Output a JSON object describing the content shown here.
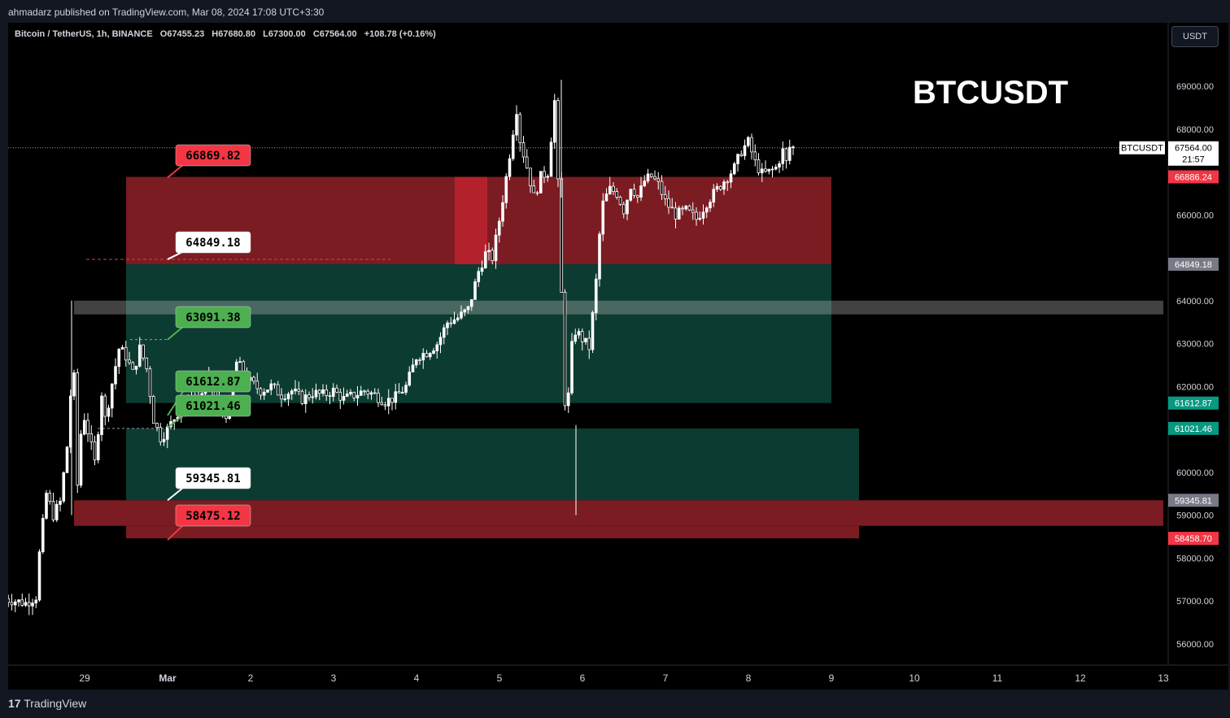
{
  "header": {
    "published": "ahmadarz published on TradingView.com, Mar 08, 2024 17:08 UTC+3:30"
  },
  "legend": {
    "symbol": "Bitcoin / TetherUS, 1h, BINANCE",
    "open": "O67455.23",
    "high": "H67680.80",
    "low": "L67300.00",
    "close": "C67564.00",
    "change": "+108.78 (+0.16%)"
  },
  "currency_button": "USDT",
  "title_text": "BTCUSDT",
  "footer": {
    "logo_text": "TradingView"
  },
  "colors": {
    "background": "#000000",
    "supply_zone": "#7a1c22",
    "demand_zone": "#0c3b31",
    "red_label": "#f23645",
    "green_label": "#4caf50",
    "teal_badge": "#089981"
  },
  "chart_data": {
    "type": "candlestick",
    "title": "BTCUSDT",
    "symbol": "Bitcoin / TetherUS",
    "interval": "1h",
    "exchange": "BINANCE",
    "ylim": [
      55200,
      70500
    ],
    "x_ticks": [
      "29",
      "Mar",
      "2",
      "3",
      "4",
      "5",
      "6",
      "7",
      "8",
      "9",
      "10",
      "11",
      "12",
      "13"
    ],
    "y_ticks": [
      "69000.00",
      "68000.00",
      "66000.00",
      "64000.00",
      "63000.00",
      "62000.00",
      "60000.00",
      "59000.00",
      "58000.00",
      "57000.00",
      "56000.00"
    ],
    "current_price": {
      "symbol": "BTCUSDT",
      "value": "67564.00",
      "countdown": "21:57",
      "y": 67564.0
    },
    "price_badges": [
      {
        "text": "66886.24",
        "y": 66886.24,
        "color": "#f23645"
      },
      {
        "text": "64849.18",
        "y": 64849.18,
        "color": "#787b86"
      },
      {
        "text": "61612.87",
        "y": 61612.87,
        "color": "#089981"
      },
      {
        "text": "61021.46",
        "y": 61021.46,
        "color": "#089981"
      },
      {
        "text": "59345.81",
        "y": 59345.81,
        "color": "#787b86"
      },
      {
        "text": "58458.70",
        "y": 58458.7,
        "color": "#f23645"
      }
    ],
    "level_labels": [
      {
        "text": "66869.82",
        "y": 66869.82,
        "style": "red"
      },
      {
        "text": "64849.18",
        "y": 64849.18,
        "style": "white"
      },
      {
        "text": "63091.38",
        "y": 63091.38,
        "style": "green"
      },
      {
        "text": "61612.87",
        "y": 61612.87,
        "style": "green"
      },
      {
        "text": "61021.46",
        "y": 61021.46,
        "style": "green"
      },
      {
        "text": "59345.81",
        "y": 59345.81,
        "style": "white"
      },
      {
        "text": "58475.12",
        "y": 58475.12,
        "style": "red"
      }
    ],
    "zones": [
      {
        "kind": "supply",
        "y_top": 66886.24,
        "y_bottom": 64849.18,
        "x_from": "Feb 29 12:00",
        "x_to": "Mar 8 24:00"
      },
      {
        "kind": "demand",
        "y_top": 64849.18,
        "y_bottom": 61612.87,
        "x_from": "Feb 29 12:00",
        "x_to": "Mar 8 24:00"
      },
      {
        "kind": "resistance_band",
        "y_top": 64000,
        "y_bottom": 63680,
        "x_from": "Feb 28 20:00",
        "x_to": "Mar 13"
      },
      {
        "kind": "demand",
        "y_top": 61021.46,
        "y_bottom": 59345.81,
        "x_from": "Feb 29 12:00",
        "x_to": "Mar 9 08:00"
      },
      {
        "kind": "support_band",
        "y_top": 59345.81,
        "y_bottom": 58750,
        "x_from": "Feb 28 20:00",
        "x_to": "Mar 13"
      },
      {
        "kind": "supply",
        "y_top": 58750,
        "y_bottom": 58458.7,
        "x_from": "Feb 29 12:00",
        "x_to": "Mar 9 08:00"
      }
    ],
    "price_path": [
      {
        "t": "Feb 28 00:00",
        "price": 57050
      },
      {
        "t": "Feb 28 06:00",
        "price": 56950
      },
      {
        "t": "Feb 28 09:00",
        "price": 57100
      },
      {
        "t": "Feb 28 10:00",
        "price": 58100
      },
      {
        "t": "Feb 28 12:00",
        "price": 59500
      },
      {
        "t": "Feb 28 14:00",
        "price": 59000
      },
      {
        "t": "Feb 28 16:00",
        "price": 59300
      },
      {
        "t": "Feb 28 18:00",
        "price": 60600
      },
      {
        "t": "Feb 28 19:00",
        "price": 61800
      },
      {
        "t": "Feb 28 20:00",
        "price": 62200
      },
      {
        "t": "Feb 28 21:00",
        "price": 59700
      },
      {
        "t": "Feb 28 22:00",
        "price": 60900
      },
      {
        "t": "Feb 29 00:00",
        "price": 61300
      },
      {
        "t": "Feb 29 03:00",
        "price": 60200
      },
      {
        "t": "Feb 29 05:00",
        "price": 61900
      },
      {
        "t": "Feb 29 06:00",
        "price": 61200
      },
      {
        "t": "Feb 29 08:00",
        "price": 62100
      },
      {
        "t": "Feb 29 10:00",
        "price": 62900
      },
      {
        "t": "Feb 29 12:00",
        "price": 62700
      },
      {
        "t": "Feb 29 14:00",
        "price": 62300
      },
      {
        "t": "Feb 29 16:00",
        "price": 62900
      },
      {
        "t": "Feb 29 18:00",
        "price": 62400
      },
      {
        "t": "Feb 29 20:00",
        "price": 61200
      },
      {
        "t": "Feb 29 22:00",
        "price": 60800
      },
      {
        "t": "Mar 1 00:00",
        "price": 61000
      },
      {
        "t": "Mar 1 03:00",
        "price": 61400
      },
      {
        "t": "Mar 1 06:00",
        "price": 61600
      },
      {
        "t": "Mar 1 09:00",
        "price": 61700
      },
      {
        "t": "Mar 1 12:00",
        "price": 62200
      },
      {
        "t": "Mar 1 15:00",
        "price": 61500
      },
      {
        "t": "Mar 1 18:00",
        "price": 61300
      },
      {
        "t": "Mar 1 20:00",
        "price": 62600
      },
      {
        "t": "Mar 1 22:00",
        "price": 62300
      },
      {
        "t": "Mar 2 00:00",
        "price": 62100
      },
      {
        "t": "Mar 2 03:00",
        "price": 61900
      },
      {
        "t": "Mar 2 06:00",
        "price": 62000
      },
      {
        "t": "Mar 2 09:00",
        "price": 61800
      },
      {
        "t": "Mar 2 12:00",
        "price": 61900
      },
      {
        "t": "Mar 2 15:00",
        "price": 61700
      },
      {
        "t": "Mar 2 18:00",
        "price": 61850
      },
      {
        "t": "Mar 2 21:00",
        "price": 61800
      },
      {
        "t": "Mar 3 00:00",
        "price": 61900
      },
      {
        "t": "Mar 3 03:00",
        "price": 61700
      },
      {
        "t": "Mar 3 06:00",
        "price": 61800
      },
      {
        "t": "Mar 3 09:00",
        "price": 61900
      },
      {
        "t": "Mar 3 12:00",
        "price": 61800
      },
      {
        "t": "Mar 3 15:00",
        "price": 61650
      },
      {
        "t": "Mar 3 18:00",
        "price": 61750
      },
      {
        "t": "Mar 3 21:00",
        "price": 62000
      },
      {
        "t": "Mar 4 00:00",
        "price": 62700
      },
      {
        "t": "Mar 4 03:00",
        "price": 62800
      },
      {
        "t": "Mar 4 06:00",
        "price": 63000
      },
      {
        "t": "Mar 4 09:00",
        "price": 63500
      },
      {
        "t": "Mar 4 12:00",
        "price": 63600
      },
      {
        "t": "Mar 4 15:00",
        "price": 63800
      },
      {
        "t": "Mar 4 18:00",
        "price": 64700
      },
      {
        "t": "Mar 4 20:00",
        "price": 65100
      },
      {
        "t": "Mar 4 22:00",
        "price": 65000
      },
      {
        "t": "Mar 5 00:00",
        "price": 65900
      },
      {
        "t": "Mar 5 02:00",
        "price": 66900
      },
      {
        "t": "Mar 5 04:00",
        "price": 68000
      },
      {
        "t": "Mar 5 05:00",
        "price": 68500
      },
      {
        "t": "Mar 5 06:00",
        "price": 67700
      },
      {
        "t": "Mar 5 08:00",
        "price": 67100
      },
      {
        "t": "Mar 5 10:00",
        "price": 66400
      },
      {
        "t": "Mar 5 12:00",
        "price": 66900
      },
      {
        "t": "Mar 5 14:00",
        "price": 67000
      },
      {
        "t": "Mar 5 16:00",
        "price": 68700
      },
      {
        "t": "Mar 5 17:00",
        "price": 66600
      },
      {
        "t": "Mar 5 18:00",
        "price": 64000
      },
      {
        "t": "Mar 5 19:00",
        "price": 61500
      },
      {
        "t": "Mar 5 20:00",
        "price": 61800
      },
      {
        "t": "Mar 5 21:00",
        "price": 63000
      },
      {
        "t": "Mar 5 22:00",
        "price": 63300
      },
      {
        "t": "Mar 6 00:00",
        "price": 63100
      },
      {
        "t": "Mar 6 02:00",
        "price": 62900
      },
      {
        "t": "Mar 6 04:00",
        "price": 64500
      },
      {
        "t": "Mar 6 05:00",
        "price": 65600
      },
      {
        "t": "Mar 6 06:00",
        "price": 66300
      },
      {
        "t": "Mar 6 08:00",
        "price": 66600
      },
      {
        "t": "Mar 6 10:00",
        "price": 66500
      },
      {
        "t": "Mar 6 12:00",
        "price": 66100
      },
      {
        "t": "Mar 6 14:00",
        "price": 66700
      },
      {
        "t": "Mar 6 16:00",
        "price": 66400
      },
      {
        "t": "Mar 6 18:00",
        "price": 66800
      },
      {
        "t": "Mar 6 20:00",
        "price": 66900
      },
      {
        "t": "Mar 6 22:00",
        "price": 66700
      },
      {
        "t": "Mar 7 00:00",
        "price": 66300
      },
      {
        "t": "Mar 7 03:00",
        "price": 66000
      },
      {
        "t": "Mar 7 06:00",
        "price": 66100
      },
      {
        "t": "Mar 7 09:00",
        "price": 65900
      },
      {
        "t": "Mar 7 12:00",
        "price": 66300
      },
      {
        "t": "Mar 7 15:00",
        "price": 66600
      },
      {
        "t": "Mar 7 18:00",
        "price": 66900
      },
      {
        "t": "Mar 7 20:00",
        "price": 67100
      },
      {
        "t": "Mar 7 22:00",
        "price": 67500
      },
      {
        "t": "Mar 8 00:00",
        "price": 67700
      },
      {
        "t": "Mar 8 02:00",
        "price": 67200
      },
      {
        "t": "Mar 8 04:00",
        "price": 66950
      },
      {
        "t": "Mar 8 06:00",
        "price": 67000
      },
      {
        "t": "Mar 8 08:00",
        "price": 67100
      },
      {
        "t": "Mar 8 10:00",
        "price": 67500
      },
      {
        "t": "Mar 8 11:00",
        "price": 67200
      },
      {
        "t": "Mar 8 12:00",
        "price": 67600
      },
      {
        "t": "Mar 8 13:00",
        "price": 67564
      }
    ]
  }
}
